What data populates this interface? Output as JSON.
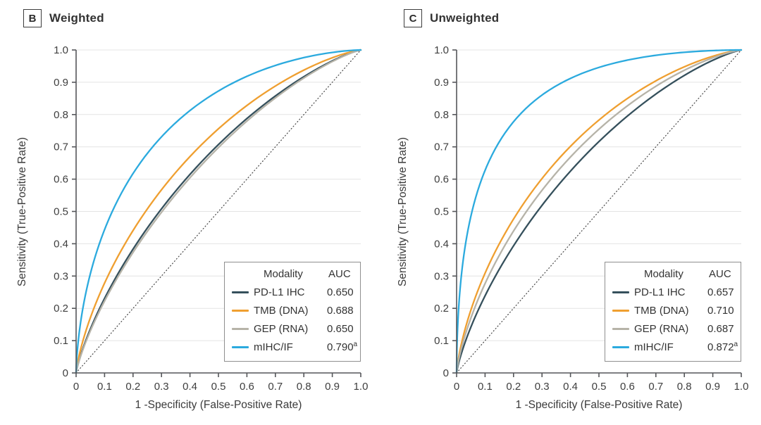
{
  "figure": {
    "legend_headers": {
      "modality": "Modality",
      "auc": "AUC"
    },
    "axes": {
      "x_label": "1 -Specificity (False-Positive Rate)",
      "y_label": "Sensitivity (True-Positive Rate)",
      "x_tick_labels": [
        "0",
        "0.1",
        "0.2",
        "0.3",
        "0.4",
        "0.5",
        "0.6",
        "0.7",
        "0.8",
        "0.9",
        "1.0"
      ],
      "y_tick_labels": [
        "0",
        "0.1",
        "0.2",
        "0.3",
        "0.4",
        "0.5",
        "0.6",
        "0.7",
        "0.8",
        "0.9",
        "1.0"
      ]
    },
    "colors": {
      "grid": "#e4e4e4",
      "axis": "#55565a",
      "tick_text": "#3e3e3e",
      "reference_line": "#454545",
      "legend_border": "#8f8f8f"
    }
  },
  "chart_data": [
    {
      "type": "line",
      "panel_letter": "B",
      "title": "Weighted",
      "xlabel": "1 -Specificity (False-Positive Rate)",
      "ylabel": "Sensitivity (True-Positive Rate)",
      "xlim": [
        0,
        1
      ],
      "ylim": [
        0,
        1
      ],
      "x_ticks": [
        0,
        0.1,
        0.2,
        0.3,
        0.4,
        0.5,
        0.6,
        0.7,
        0.8,
        0.9,
        1.0
      ],
      "y_ticks": [
        0,
        0.1,
        0.2,
        0.3,
        0.4,
        0.5,
        0.6,
        0.7,
        0.8,
        0.9,
        1.0
      ],
      "grid": "horizontal-only",
      "legend_position": "inside-bottom-right",
      "curve_model": "smooth binormal ROC curves from (0,0) to (1,1), shape set by AUC",
      "reference_line": "dotted chance diagonal (0,0)-(1,1)",
      "series": [
        {
          "name": "PD-L1 IHC",
          "auc": 0.65,
          "auc_label": "0.650",
          "auc_sup": "",
          "color": "#35505c"
        },
        {
          "name": "TMB (DNA)",
          "auc": 0.688,
          "auc_label": "0.688",
          "auc_sup": "",
          "color": "#ef9f30"
        },
        {
          "name": "GEP (RNA)",
          "auc": 0.65,
          "auc_label": "0.650",
          "auc_sup": "",
          "color": "#b6b3a8"
        },
        {
          "name": "mIHC/IF",
          "auc": 0.79,
          "auc_label": "0.790",
          "auc_sup": "a",
          "color": "#2baade"
        }
      ]
    },
    {
      "type": "line",
      "panel_letter": "C",
      "title": "Unweighted",
      "xlabel": "1 -Specificity (False-Positive Rate)",
      "ylabel": "Sensitivity (True-Positive Rate)",
      "xlim": [
        0,
        1
      ],
      "ylim": [
        0,
        1
      ],
      "x_ticks": [
        0,
        0.1,
        0.2,
        0.3,
        0.4,
        0.5,
        0.6,
        0.7,
        0.8,
        0.9,
        1.0
      ],
      "y_ticks": [
        0,
        0.1,
        0.2,
        0.3,
        0.4,
        0.5,
        0.6,
        0.7,
        0.8,
        0.9,
        1.0
      ],
      "grid": "horizontal-only",
      "legend_position": "inside-bottom-right",
      "curve_model": "smooth binormal ROC curves from (0,0) to (1,1), shape set by AUC",
      "reference_line": "dotted chance diagonal (0,0)-(1,1)",
      "series": [
        {
          "name": "PD-L1 IHC",
          "auc": 0.657,
          "auc_label": "0.657",
          "auc_sup": "",
          "color": "#35505c"
        },
        {
          "name": "TMB (DNA)",
          "auc": 0.71,
          "auc_label": "0.710",
          "auc_sup": "",
          "color": "#ef9f30"
        },
        {
          "name": "GEP (RNA)",
          "auc": 0.687,
          "auc_label": "0.687",
          "auc_sup": "",
          "color": "#b6b3a8"
        },
        {
          "name": "mIHC/IF",
          "auc": 0.872,
          "auc_label": "0.872",
          "auc_sup": "a",
          "color": "#2baade"
        }
      ]
    }
  ]
}
